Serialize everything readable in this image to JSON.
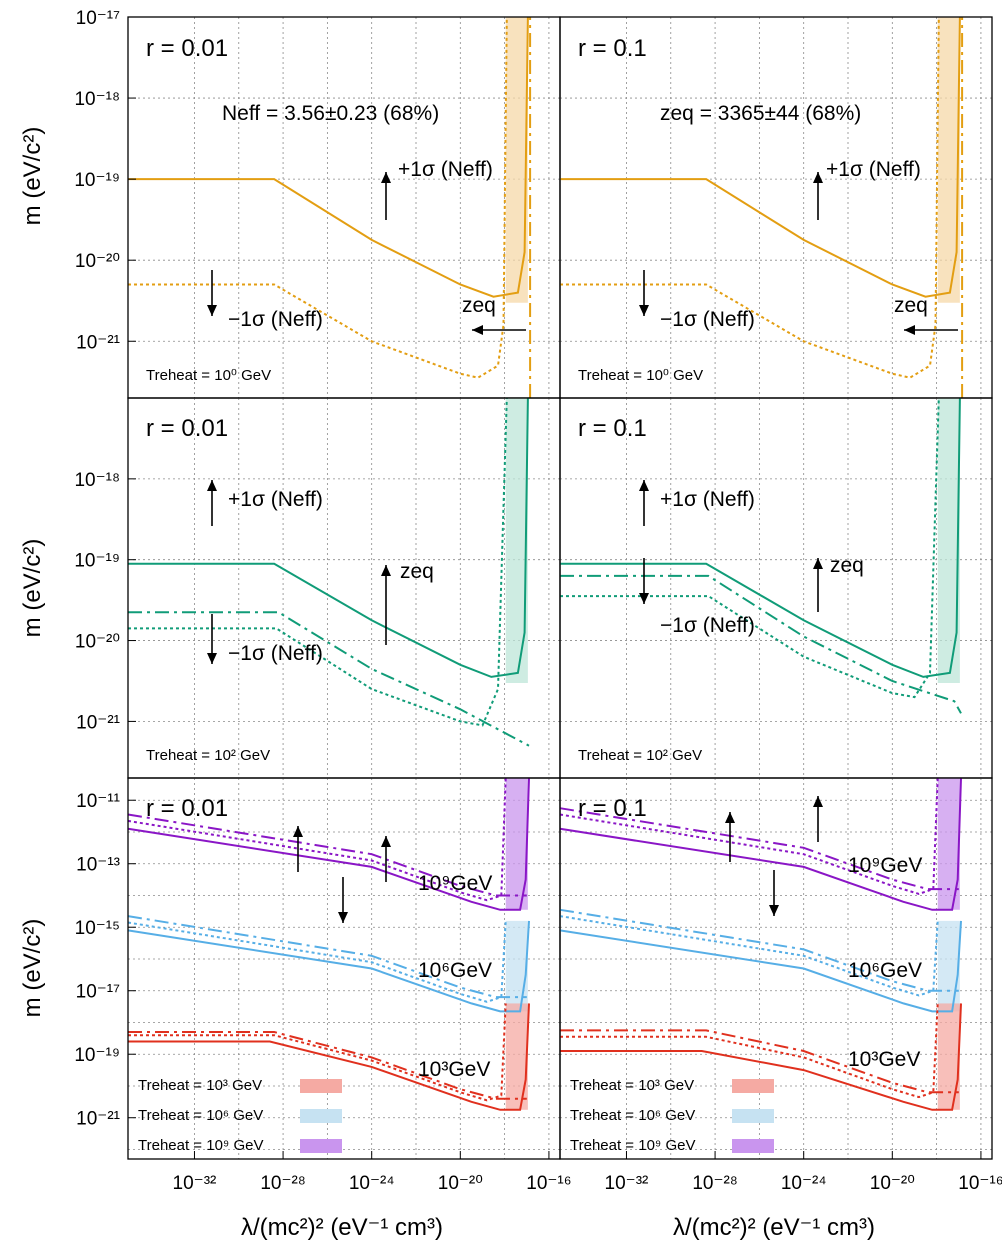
{
  "colors": {
    "orange": "#e39e12",
    "orange_fill": "#f6d8a8",
    "green": "#109c78",
    "green_fill": "#bde6d8",
    "purple": "#8a16c6",
    "purple_fill": "#c995ee",
    "blue": "#56aee6",
    "blue_fill": "#c6e2f2",
    "red": "#e0301e",
    "red_fill": "#f5aaa3"
  },
  "axes": {
    "xlabel": "λ/(mc²)² (eV⁻¹ cm³)",
    "ylabel": "m (eV/c²)",
    "x_ticks": [
      "10⁻³²",
      "10⁻²⁸",
      "10⁻²⁴",
      "10⁻²⁰",
      "10⁻¹⁶"
    ],
    "x_tick_values": [
      -32,
      -28,
      -24,
      -20,
      -16
    ],
    "xlim_log10": [
      -35,
      -15.5
    ]
  },
  "rows": [
    {
      "ylim_log10": [
        -21.7,
        -17
      ],
      "y_ticks": [
        {
          "label": "10⁻¹⁷",
          "v": -17
        },
        {
          "label": "10⁻¹⁸",
          "v": -18
        },
        {
          "label": "10⁻¹⁹",
          "v": -19
        },
        {
          "label": "10⁻²⁰",
          "v": -20
        },
        {
          "label": "10⁻²¹",
          "v": -21
        }
      ],
      "legend": [
        "Treheat = 10⁰ GeV"
      ]
    },
    {
      "ylim_log10": [
        -21.7,
        -17
      ],
      "y_ticks": [
        {
          "label": "10⁻¹⁸",
          "v": -18
        },
        {
          "label": "10⁻¹⁹",
          "v": -19
        },
        {
          "label": "10⁻²⁰",
          "v": -20
        },
        {
          "label": "10⁻²¹",
          "v": -21
        }
      ],
      "legend": [
        "Treheat = 10² GeV"
      ]
    },
    {
      "ylim_log10": [
        -22.3,
        -10.3
      ],
      "y_ticks": [
        {
          "label": "10⁻¹¹",
          "v": -11
        },
        {
          "label": "10⁻¹³",
          "v": -13
        },
        {
          "label": "10⁻¹⁵",
          "v": -15
        },
        {
          "label": "10⁻¹⁷",
          "v": -17
        },
        {
          "label": "10⁻¹⁹",
          "v": -19
        },
        {
          "label": "10⁻²¹",
          "v": -21
        }
      ],
      "legend": [
        "Treheat = 10³ GeV",
        "Treheat = 10⁶ GeV",
        "Treheat = 10⁹ GeV"
      ]
    }
  ],
  "columns": [
    {
      "r_label": "r = 0.01"
    },
    {
      "r_label": "r = 0.1"
    }
  ],
  "annotations": {
    "neff_measure": "Neff = 3.56±0.23 (68%)",
    "zeq_measure": "zeq = 3365±44 (68%)",
    "plus_sigma": "+1σ (Neff)",
    "minus_sigma": "−1σ (Neff)",
    "zeq": "zeq",
    "gev_9": "10⁹GeV",
    "gev_6": "10⁶GeV",
    "gev_3": "10³GeV"
  },
  "chart_data": [
    {
      "type": "line",
      "panel": "top-left",
      "r": "r = 0.01",
      "treheat": "10⁰ GeV",
      "series": [
        {
          "style": "solid",
          "x_log10": [
            -35,
            -28.4,
            -24,
            -20,
            -18.5,
            -17.4,
            -17.1,
            -16.95
          ],
          "y_log10": [
            -19.0,
            -19.0,
            -19.75,
            -20.3,
            -20.45,
            -20.4,
            -19.9,
            -17.0
          ]
        },
        {
          "style": "dotted",
          "x_log10": [
            -35,
            -28.4,
            -24,
            -20,
            -19.2,
            -18.3,
            -18.05,
            -17.9
          ],
          "y_log10": [
            -20.3,
            -20.3,
            -21.0,
            -21.4,
            -21.45,
            -21.3,
            -20.8,
            -17.0
          ]
        },
        {
          "style": "dashdot",
          "x_log10": [
            -16.85,
            -16.85
          ],
          "y_log10": [
            -21.7,
            -17.0
          ]
        }
      ]
    },
    {
      "type": "line",
      "panel": "top-right",
      "r": "r = 0.1",
      "treheat": "10⁰ GeV",
      "series": [
        {
          "style": "solid",
          "x_log10": [
            -35,
            -28.4,
            -24,
            -20,
            -18.5,
            -17.4,
            -17.1,
            -16.95
          ],
          "y_log10": [
            -19.0,
            -19.0,
            -19.75,
            -20.3,
            -20.45,
            -20.4,
            -19.9,
            -17.0
          ]
        },
        {
          "style": "dotted",
          "x_log10": [
            -35,
            -28.4,
            -24,
            -20,
            -19.2,
            -18.3,
            -18.05,
            -17.9
          ],
          "y_log10": [
            -20.3,
            -20.3,
            -21.0,
            -21.4,
            -21.45,
            -21.3,
            -20.8,
            -17.0
          ]
        },
        {
          "style": "dashdot",
          "x_log10": [
            -16.85,
            -16.85
          ],
          "y_log10": [
            -21.7,
            -17.0
          ]
        }
      ]
    },
    {
      "type": "line",
      "panel": "middle-left",
      "r": "r = 0.01",
      "treheat": "10² GeV",
      "series": [
        {
          "style": "solid",
          "x_log10": [
            -35,
            -28.4,
            -24,
            -20,
            -18.6,
            -17.4,
            -17.1,
            -16.95
          ],
          "y_log10": [
            -19.05,
            -19.05,
            -19.75,
            -20.3,
            -20.45,
            -20.4,
            -19.9,
            -17.0
          ]
        },
        {
          "style": "dotted",
          "x_log10": [
            -35,
            -28.3,
            -24,
            -20,
            -19.0,
            -18.3,
            -17.9
          ],
          "y_log10": [
            -19.85,
            -19.85,
            -20.6,
            -21.0,
            -21.05,
            -20.6,
            -17.0
          ]
        },
        {
          "style": "dashdot",
          "x_log10": [
            -35,
            -28.2,
            -24,
            -20,
            -16.9
          ],
          "y_log10": [
            -19.65,
            -19.65,
            -20.35,
            -20.85,
            -21.3
          ]
        }
      ]
    },
    {
      "type": "line",
      "panel": "middle-right",
      "r": "r = 0.1",
      "treheat": "10² GeV",
      "series": [
        {
          "style": "solid",
          "x_log10": [
            -35,
            -28.4,
            -24,
            -20,
            -18.6,
            -17.4,
            -17.1,
            -16.95
          ],
          "y_log10": [
            -19.05,
            -19.05,
            -19.75,
            -20.3,
            -20.45,
            -20.4,
            -19.9,
            -17.0
          ]
        },
        {
          "style": "dotted",
          "x_log10": [
            -35,
            -28.3,
            -24,
            -20,
            -19.0,
            -18.3,
            -17.9
          ],
          "y_log10": [
            -19.45,
            -19.45,
            -20.2,
            -20.65,
            -20.7,
            -20.4,
            -17.0
          ]
        },
        {
          "style": "dashdot",
          "x_log10": [
            -35,
            -28.3,
            -24,
            -20,
            -17.2,
            -16.9
          ],
          "y_log10": [
            -19.2,
            -19.2,
            -19.95,
            -20.5,
            -20.75,
            -20.9
          ]
        }
      ]
    },
    {
      "type": "line",
      "panel": "bottom-left",
      "r": "r = 0.01",
      "series": [
        {
          "name": "10⁹GeV",
          "style": "solid",
          "x_log10": [
            -35,
            -24,
            -19.5,
            -18.2,
            -17.3,
            -17.05,
            -16.9
          ],
          "y_log10": [
            -11.9,
            -13.1,
            -14.2,
            -14.45,
            -14.45,
            -13.5,
            -10.3
          ]
        },
        {
          "name": "10⁹GeV",
          "style": "dotted",
          "x_log10": [
            -35,
            -24,
            -20,
            -18.8,
            -18.15,
            -17.95
          ],
          "y_log10": [
            -11.65,
            -12.9,
            -13.9,
            -14.15,
            -14.0,
            -10.3
          ]
        },
        {
          "name": "10⁹GeV",
          "style": "dashdot",
          "x_log10": [
            -35,
            -24,
            -20,
            -18.4,
            -17.0
          ],
          "y_log10": [
            -11.45,
            -12.7,
            -13.7,
            -14.0,
            -14.0
          ]
        },
        {
          "name": "10⁶GeV",
          "style": "solid",
          "x_log10": [
            -35,
            -24,
            -19.5,
            -18.2,
            -17.3,
            -17.05,
            -16.9
          ],
          "y_log10": [
            -15.1,
            -16.3,
            -17.4,
            -17.65,
            -17.65,
            -16.5,
            -14.8
          ]
        },
        {
          "name": "10⁶GeV",
          "style": "dotted",
          "x_log10": [
            -35,
            -24,
            -20,
            -18.8,
            -18.15,
            -17.95
          ],
          "y_log10": [
            -14.85,
            -16.1,
            -17.1,
            -17.35,
            -17.2,
            -14.8
          ]
        },
        {
          "name": "10⁶GeV",
          "style": "dashdot",
          "x_log10": [
            -35,
            -24,
            -20,
            -18.4,
            -17.0
          ],
          "y_log10": [
            -14.65,
            -15.9,
            -16.9,
            -17.2,
            -17.2
          ]
        },
        {
          "name": "10³GeV",
          "style": "solid",
          "x_log10": [
            -35,
            -28.6,
            -24,
            -19.5,
            -18.2,
            -17.3,
            -17.05,
            -16.9
          ],
          "y_log10": [
            -18.6,
            -18.6,
            -19.4,
            -20.5,
            -20.75,
            -20.75,
            -19.8,
            -17.4
          ]
        },
        {
          "name": "10³GeV",
          "style": "dotted",
          "x_log10": [
            -35,
            -28.4,
            -24,
            -20,
            -18.8,
            -18.15,
            -17.95
          ],
          "y_log10": [
            -18.4,
            -18.4,
            -19.2,
            -20.2,
            -20.45,
            -20.3,
            -17.4
          ]
        },
        {
          "name": "10³GeV",
          "style": "dashdot",
          "x_log10": [
            -35,
            -28.4,
            -24,
            -20,
            -18.4,
            -17.0
          ],
          "y_log10": [
            -18.3,
            -18.3,
            -19.1,
            -20.1,
            -20.4,
            -20.4
          ]
        }
      ]
    },
    {
      "type": "line",
      "panel": "bottom-right",
      "r": "r = 0.1",
      "series": [
        {
          "name": "10⁹GeV",
          "style": "solid",
          "x_log10": [
            -35,
            -24,
            -19.5,
            -18.2,
            -17.3,
            -17.05,
            -16.9
          ],
          "y_log10": [
            -11.9,
            -13.1,
            -14.2,
            -14.45,
            -14.45,
            -13.5,
            -10.3
          ]
        },
        {
          "name": "10⁹GeV",
          "style": "dotted",
          "x_log10": [
            -35,
            -24,
            -20,
            -18.8,
            -18.15,
            -17.95
          ],
          "y_log10": [
            -11.45,
            -12.7,
            -13.7,
            -13.95,
            -13.8,
            -10.3
          ]
        },
        {
          "name": "10⁹GeV",
          "style": "dashdot",
          "x_log10": [
            -35,
            -24,
            -20,
            -18.4,
            -17.0
          ],
          "y_log10": [
            -11.25,
            -12.5,
            -13.5,
            -13.8,
            -13.8
          ]
        },
        {
          "name": "10⁶GeV",
          "style": "solid",
          "x_log10": [
            -35,
            -24,
            -19.5,
            -18.2,
            -17.3,
            -17.05,
            -16.9
          ],
          "y_log10": [
            -15.1,
            -16.3,
            -17.4,
            -17.65,
            -17.65,
            -16.5,
            -14.8
          ]
        },
        {
          "name": "10⁶GeV",
          "style": "dotted",
          "x_log10": [
            -35,
            -24,
            -20,
            -18.8,
            -18.15,
            -17.95
          ],
          "y_log10": [
            -14.65,
            -15.9,
            -16.9,
            -17.15,
            -17.0,
            -14.8
          ]
        },
        {
          "name": "10⁶GeV",
          "style": "dashdot",
          "x_log10": [
            -35,
            -24,
            -20,
            -18.4,
            -17.0
          ],
          "y_log10": [
            -14.45,
            -15.7,
            -16.7,
            -17.0,
            -17.0
          ]
        },
        {
          "name": "10³GeV",
          "style": "solid",
          "x_log10": [
            -35,
            -28.6,
            -24,
            -19.5,
            -18.2,
            -17.3,
            -17.05,
            -16.9
          ],
          "y_log10": [
            -18.9,
            -18.9,
            -19.5,
            -20.5,
            -20.75,
            -20.75,
            -19.8,
            -17.4
          ]
        },
        {
          "name": "10³GeV",
          "style": "dotted",
          "x_log10": [
            -35,
            -28.4,
            -24,
            -20,
            -18.8,
            -18.15,
            -17.95
          ],
          "y_log10": [
            -18.45,
            -18.45,
            -19.1,
            -20.1,
            -20.35,
            -20.2,
            -17.4
          ]
        },
        {
          "name": "10³GeV",
          "style": "dashdot",
          "x_log10": [
            -35,
            -28.4,
            -24,
            -20,
            -18.4,
            -17.0
          ],
          "y_log10": [
            -18.25,
            -18.25,
            -18.9,
            -19.9,
            -20.2,
            -20.2
          ]
        }
      ]
    }
  ]
}
